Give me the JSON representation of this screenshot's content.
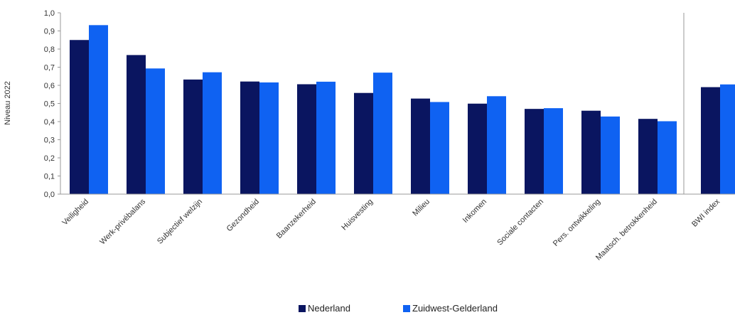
{
  "chart_data": {
    "type": "bar",
    "ylabel": "Niveau 2022",
    "ylim": [
      0,
      1.0
    ],
    "ytick_step": 0.1,
    "ytick_labels": [
      "0,0",
      "0,1",
      "0,2",
      "0,3",
      "0,4",
      "0,5",
      "0,6",
      "0,7",
      "0,8",
      "0,9",
      "1,0"
    ],
    "grid": false,
    "legend_position": "bottom-center",
    "categories": [
      "Veiligheid",
      "Werk-privébalans",
      "Subjectief welzijn",
      "Gezondheid",
      "Baanzekerheid",
      "Huisvesting",
      "Milieu",
      "Inkomen",
      "Sociale contacten",
      "Pers. ontwikkeling",
      "Maatsch. betrokkenheid",
      "BWI index"
    ],
    "series": [
      {
        "name": "Nederland",
        "color": "#0a1560",
        "values": [
          0.85,
          0.767,
          0.632,
          0.621,
          0.606,
          0.558,
          0.527,
          0.499,
          0.47,
          0.46,
          0.415,
          0.59
        ]
      },
      {
        "name": "Zuidwest-Gelderland",
        "color": "#0f62f2",
        "values": [
          0.932,
          0.693,
          0.672,
          0.616,
          0.62,
          0.67,
          0.508,
          0.54,
          0.474,
          0.428,
          0.402,
          0.605
        ]
      }
    ]
  }
}
